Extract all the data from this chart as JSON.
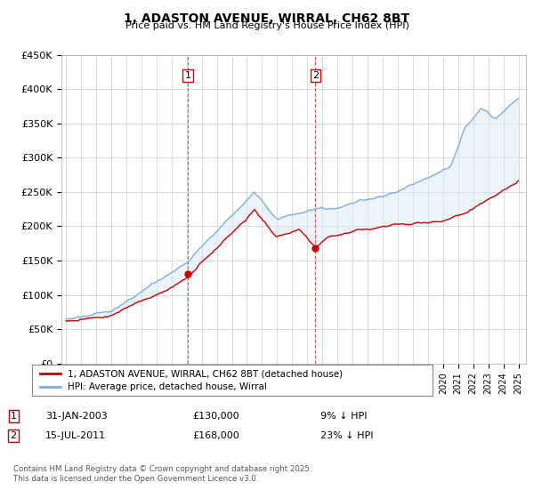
{
  "title": "1, ADASTON AVENUE, WIRRAL, CH62 8BT",
  "subtitle": "Price paid vs. HM Land Registry's House Price Index (HPI)",
  "legend_line1": "1, ADASTON AVENUE, WIRRAL, CH62 8BT (detached house)",
  "legend_line2": "HPI: Average price, detached house, Wirral",
  "footer": "Contains HM Land Registry data © Crown copyright and database right 2025.\nThis data is licensed under the Open Government Licence v3.0.",
  "sale1_label": "1",
  "sale1_date": "31-JAN-2003",
  "sale1_price": "£130,000",
  "sale1_pct": "9% ↓ HPI",
  "sale2_label": "2",
  "sale2_date": "15-JUL-2011",
  "sale2_price": "£168,000",
  "sale2_pct": "23% ↓ HPI",
  "red_color": "#cc0000",
  "blue_color": "#7aade0",
  "blue_fill": "#daeaf7",
  "sale1_x": 2003.08,
  "sale1_y": 130000,
  "sale2_x": 2011.54,
  "sale2_y": 168000,
  "ylim": [
    0,
    450000
  ],
  "xlim": [
    1994.7,
    2025.5
  ],
  "yticks": [
    0,
    50000,
    100000,
    150000,
    200000,
    250000,
    300000,
    350000,
    400000,
    450000
  ],
  "ytick_labels": [
    "£0",
    "£50K",
    "£100K",
    "£150K",
    "£200K",
    "£250K",
    "£300K",
    "£350K",
    "£400K",
    "£450K"
  ]
}
